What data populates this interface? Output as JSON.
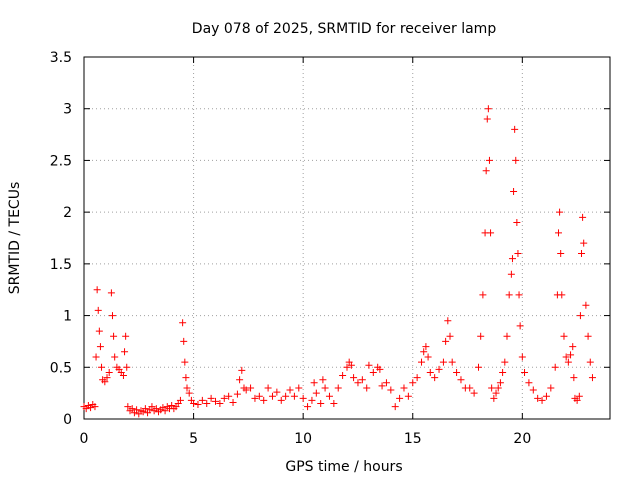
{
  "chart_data": {
    "type": "scatter",
    "title": "Day 078 of 2025, SRMTID for receiver lamp",
    "xlabel": "GPS time / hours",
    "ylabel": "SRMTID / TECUs",
    "xlim": [
      0,
      24
    ],
    "ylim": [
      0,
      3.5
    ],
    "x_ticks": [
      0,
      5,
      10,
      15,
      20
    ],
    "x_tick_labels": [
      "0",
      "5",
      "10",
      "15",
      "20"
    ],
    "y_ticks": [
      0,
      0.5,
      1,
      1.5,
      2,
      2.5,
      3,
      3.5
    ],
    "y_tick_labels": [
      "0",
      "0.5",
      "1",
      "1.5",
      "2",
      "2.5",
      "3",
      "3.5"
    ],
    "grid": true,
    "marker": "+",
    "series": [
      {
        "name": "SRMTID",
        "color": "#ff0000",
        "points": [
          [
            0.0,
            0.12
          ],
          [
            0.1,
            0.1
          ],
          [
            0.2,
            0.13
          ],
          [
            0.3,
            0.11
          ],
          [
            0.4,
            0.14
          ],
          [
            0.5,
            0.12
          ],
          [
            0.55,
            0.6
          ],
          [
            0.6,
            1.25
          ],
          [
            0.65,
            1.05
          ],
          [
            0.7,
            0.85
          ],
          [
            0.75,
            0.7
          ],
          [
            0.8,
            0.5
          ],
          [
            0.85,
            0.38
          ],
          [
            0.95,
            0.36
          ],
          [
            1.05,
            0.4
          ],
          [
            1.15,
            0.45
          ],
          [
            1.25,
            1.22
          ],
          [
            1.3,
            1.0
          ],
          [
            1.35,
            0.8
          ],
          [
            1.4,
            0.6
          ],
          [
            1.5,
            0.5
          ],
          [
            1.6,
            0.48
          ],
          [
            1.7,
            0.45
          ],
          [
            1.8,
            0.42
          ],
          [
            1.85,
            0.65
          ],
          [
            1.9,
            0.8
          ],
          [
            1.95,
            0.5
          ],
          [
            2.0,
            0.12
          ],
          [
            2.1,
            0.08
          ],
          [
            2.2,
            0.1
          ],
          [
            2.3,
            0.06
          ],
          [
            2.4,
            0.09
          ],
          [
            2.5,
            0.05
          ],
          [
            2.6,
            0.08
          ],
          [
            2.7,
            0.07
          ],
          [
            2.8,
            0.1
          ],
          [
            2.9,
            0.06
          ],
          [
            3.0,
            0.09
          ],
          [
            3.1,
            0.12
          ],
          [
            3.2,
            0.08
          ],
          [
            3.3,
            0.1
          ],
          [
            3.4,
            0.07
          ],
          [
            3.5,
            0.09
          ],
          [
            3.6,
            0.11
          ],
          [
            3.7,
            0.08
          ],
          [
            3.8,
            0.12
          ],
          [
            3.9,
            0.1
          ],
          [
            4.0,
            0.13
          ],
          [
            4.1,
            0.1
          ],
          [
            4.2,
            0.12
          ],
          [
            4.3,
            0.15
          ],
          [
            4.4,
            0.18
          ],
          [
            4.5,
            0.93
          ],
          [
            4.55,
            0.75
          ],
          [
            4.6,
            0.55
          ],
          [
            4.65,
            0.4
          ],
          [
            4.7,
            0.3
          ],
          [
            4.8,
            0.25
          ],
          [
            4.9,
            0.18
          ],
          [
            5.0,
            0.15
          ],
          [
            5.2,
            0.14
          ],
          [
            5.4,
            0.18
          ],
          [
            5.6,
            0.15
          ],
          [
            5.8,
            0.2
          ],
          [
            6.0,
            0.17
          ],
          [
            6.2,
            0.15
          ],
          [
            6.4,
            0.2
          ],
          [
            6.6,
            0.22
          ],
          [
            6.8,
            0.16
          ],
          [
            7.0,
            0.24
          ],
          [
            7.1,
            0.38
          ],
          [
            7.2,
            0.47
          ],
          [
            7.3,
            0.3
          ],
          [
            7.4,
            0.28
          ],
          [
            7.6,
            0.3
          ],
          [
            7.8,
            0.2
          ],
          [
            8.0,
            0.22
          ],
          [
            8.2,
            0.18
          ],
          [
            8.4,
            0.3
          ],
          [
            8.6,
            0.22
          ],
          [
            8.8,
            0.26
          ],
          [
            9.0,
            0.18
          ],
          [
            9.2,
            0.22
          ],
          [
            9.4,
            0.28
          ],
          [
            9.6,
            0.22
          ],
          [
            9.8,
            0.3
          ],
          [
            10.0,
            0.2
          ],
          [
            10.2,
            0.12
          ],
          [
            10.4,
            0.18
          ],
          [
            10.5,
            0.35
          ],
          [
            10.6,
            0.25
          ],
          [
            10.8,
            0.15
          ],
          [
            10.9,
            0.38
          ],
          [
            11.0,
            0.3
          ],
          [
            11.2,
            0.22
          ],
          [
            11.4,
            0.15
          ],
          [
            11.6,
            0.3
          ],
          [
            11.8,
            0.42
          ],
          [
            12.0,
            0.5
          ],
          [
            12.1,
            0.55
          ],
          [
            12.2,
            0.52
          ],
          [
            12.3,
            0.4
          ],
          [
            12.5,
            0.35
          ],
          [
            12.7,
            0.38
          ],
          [
            12.9,
            0.3
          ],
          [
            13.0,
            0.52
          ],
          [
            13.2,
            0.45
          ],
          [
            13.4,
            0.5
          ],
          [
            13.5,
            0.48
          ],
          [
            13.6,
            0.32
          ],
          [
            13.8,
            0.35
          ],
          [
            14.0,
            0.28
          ],
          [
            14.2,
            0.12
          ],
          [
            14.4,
            0.2
          ],
          [
            14.6,
            0.3
          ],
          [
            14.8,
            0.22
          ],
          [
            15.0,
            0.35
          ],
          [
            15.2,
            0.4
          ],
          [
            15.4,
            0.55
          ],
          [
            15.5,
            0.65
          ],
          [
            15.6,
            0.7
          ],
          [
            15.7,
            0.6
          ],
          [
            15.8,
            0.45
          ],
          [
            16.0,
            0.4
          ],
          [
            16.2,
            0.48
          ],
          [
            16.4,
            0.55
          ],
          [
            16.5,
            0.75
          ],
          [
            16.6,
            0.95
          ],
          [
            16.7,
            0.8
          ],
          [
            16.8,
            0.55
          ],
          [
            17.0,
            0.45
          ],
          [
            17.2,
            0.38
          ],
          [
            17.4,
            0.3
          ],
          [
            17.6,
            0.3
          ],
          [
            17.8,
            0.25
          ],
          [
            18.0,
            0.5
          ],
          [
            18.1,
            0.8
          ],
          [
            18.2,
            1.2
          ],
          [
            18.3,
            1.8
          ],
          [
            18.35,
            2.4
          ],
          [
            18.4,
            2.9
          ],
          [
            18.45,
            3.0
          ],
          [
            18.5,
            2.5
          ],
          [
            18.55,
            1.8
          ],
          [
            18.6,
            0.3
          ],
          [
            18.7,
            0.2
          ],
          [
            18.8,
            0.25
          ],
          [
            18.9,
            0.3
          ],
          [
            19.0,
            0.35
          ],
          [
            19.1,
            0.45
          ],
          [
            19.2,
            0.55
          ],
          [
            19.3,
            0.8
          ],
          [
            19.4,
            1.2
          ],
          [
            19.5,
            1.4
          ],
          [
            19.55,
            1.55
          ],
          [
            19.6,
            2.2
          ],
          [
            19.65,
            2.8
          ],
          [
            19.7,
            2.5
          ],
          [
            19.75,
            1.9
          ],
          [
            19.8,
            1.6
          ],
          [
            19.85,
            1.2
          ],
          [
            19.9,
            0.9
          ],
          [
            20.0,
            0.6
          ],
          [
            20.1,
            0.45
          ],
          [
            20.3,
            0.35
          ],
          [
            20.5,
            0.28
          ],
          [
            20.7,
            0.2
          ],
          [
            20.9,
            0.18
          ],
          [
            21.1,
            0.22
          ],
          [
            21.3,
            0.3
          ],
          [
            21.5,
            0.5
          ],
          [
            21.6,
            1.2
          ],
          [
            21.65,
            1.8
          ],
          [
            21.7,
            2.0
          ],
          [
            21.75,
            1.6
          ],
          [
            21.8,
            1.2
          ],
          [
            21.9,
            0.8
          ],
          [
            22.0,
            0.6
          ],
          [
            22.1,
            0.55
          ],
          [
            22.2,
            0.62
          ],
          [
            22.3,
            0.7
          ],
          [
            22.35,
            0.4
          ],
          [
            22.4,
            0.2
          ],
          [
            22.5,
            0.18
          ],
          [
            22.6,
            0.22
          ],
          [
            22.65,
            1.0
          ],
          [
            22.7,
            1.6
          ],
          [
            22.75,
            1.95
          ],
          [
            22.8,
            1.7
          ],
          [
            22.9,
            1.1
          ],
          [
            23.0,
            0.8
          ],
          [
            23.1,
            0.55
          ],
          [
            23.2,
            0.4
          ]
        ]
      }
    ]
  }
}
